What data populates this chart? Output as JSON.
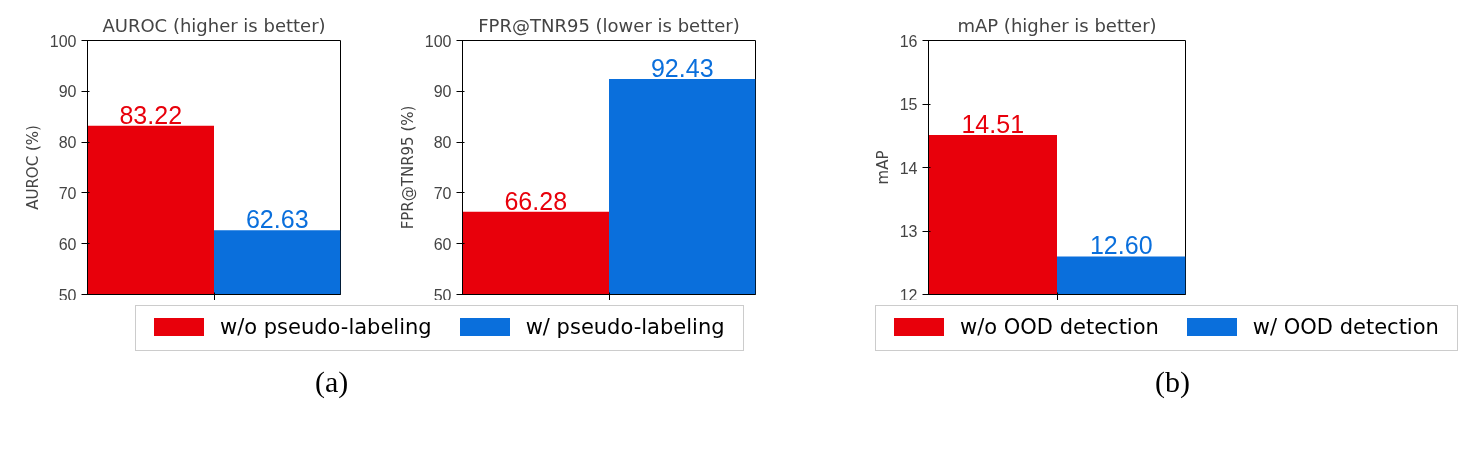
{
  "chart_data": [
    {
      "type": "bar",
      "title": "AUROC (higher is better)",
      "ylabel": "AUROC (%)",
      "categories": [
        null
      ],
      "ylim": [
        50,
        100
      ],
      "yticks": [
        50,
        60,
        70,
        80,
        90,
        100
      ],
      "legend": "bottom",
      "annotations": [
        "(a)"
      ],
      "series": [
        {
          "name": "w/o pseudo-labeling",
          "color": "#e8000b",
          "values": [
            83.22
          ],
          "value_labels": [
            "83.22"
          ]
        },
        {
          "name": "w/ pseudo-labeling",
          "color": "#0a6fdc",
          "values": [
            62.63
          ],
          "value_labels": [
            "62.63"
          ]
        }
      ]
    },
    {
      "type": "bar",
      "title": "FPR@TNR95 (lower is better)",
      "ylabel": "FPR@TNR95 (%)",
      "categories": [
        null
      ],
      "ylim": [
        50,
        100
      ],
      "yticks": [
        50,
        60,
        70,
        80,
        90,
        100
      ],
      "series": [
        {
          "color": "#e8000b",
          "values": [
            66.28
          ],
          "value_labels": [
            "66.28"
          ]
        },
        {
          "color": "#0a6fdc",
          "values": [
            92.43
          ],
          "value_labels": [
            "92.43"
          ]
        }
      ]
    },
    {
      "type": "bar",
      "title": "mAP (higher is better)",
      "ylabel": "mAP",
      "categories": [
        null
      ],
      "ylim": [
        12,
        16
      ],
      "yticks": [
        12,
        13,
        14,
        15,
        16
      ],
      "legend": "bottom",
      "annotations": [
        "(b)"
      ],
      "series": [
        {
          "name": "w/o OOD detection",
          "color": "#e8000b",
          "values": [
            14.51
          ],
          "value_labels": [
            "14.51"
          ]
        },
        {
          "name": "w/ OOD detection",
          "color": "#0a6fdc",
          "values": [
            12.6
          ],
          "value_labels": [
            "12.60"
          ]
        }
      ]
    }
  ]
}
